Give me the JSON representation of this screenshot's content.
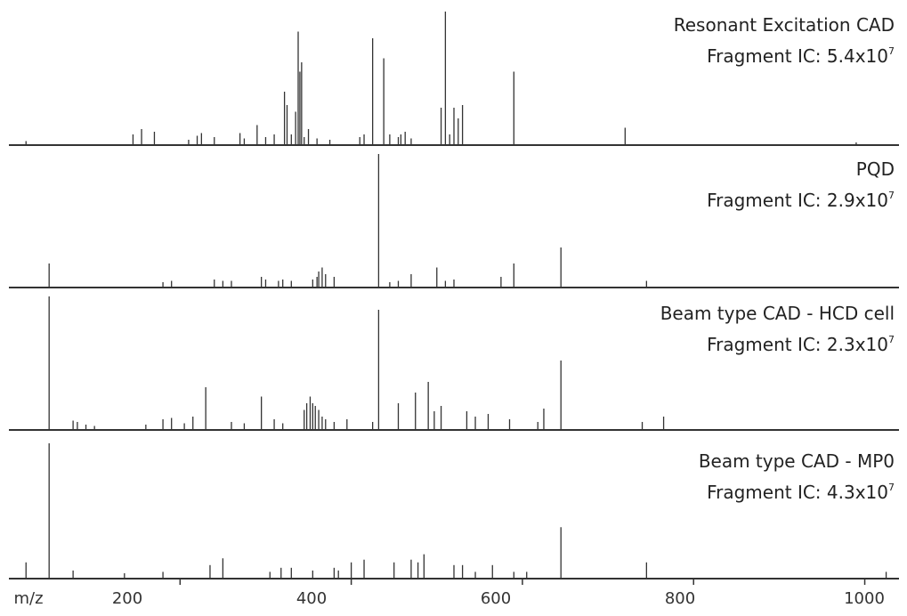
{
  "chart_data": {
    "type": "bar",
    "description_of_axes": "",
    "xlabel": "m/z",
    "xlim": [
      0,
      1040
    ],
    "x_ticks": [
      200,
      400,
      600,
      800,
      1000
    ],
    "panels": [
      {
        "title": "Resonant Excitation CAD",
        "ic_label": "Fragment IC: 5.4x10",
        "ic_exponent": "7",
        "peaks_mz": [
          20,
          145,
          155,
          170,
          210,
          220,
          225,
          240,
          270,
          275,
          290,
          300,
          310,
          322,
          325,
          330,
          335,
          338,
          340,
          342,
          345,
          350,
          360,
          375,
          410,
          415,
          425,
          438,
          445,
          455,
          458,
          463,
          470,
          505,
          510,
          515,
          520,
          525,
          530,
          590,
          720,
          990
        ],
        "peaks_rel": [
          0.03,
          0.08,
          0.12,
          0.1,
          0.04,
          0.07,
          0.09,
          0.06,
          0.09,
          0.05,
          0.15,
          0.06,
          0.08,
          0.4,
          0.3,
          0.08,
          0.25,
          0.85,
          0.55,
          0.62,
          0.06,
          0.12,
          0.05,
          0.04,
          0.06,
          0.08,
          0.8,
          0.65,
          0.08,
          0.06,
          0.08,
          0.1,
          0.05,
          0.28,
          1.0,
          0.08,
          0.28,
          0.2,
          0.3,
          0.55,
          0.13,
          0.02
        ]
      },
      {
        "title": "PQD",
        "ic_label": "Fragment IC: 2.9x10",
        "ic_exponent": "7",
        "peaks_mz": [
          47,
          180,
          190,
          240,
          250,
          260,
          295,
          300,
          315,
          320,
          330,
          355,
          360,
          362,
          366,
          370,
          380,
          432,
          445,
          455,
          470,
          500,
          510,
          520,
          575,
          590,
          645,
          745
        ],
        "peaks_rel": [
          0.18,
          0.04,
          0.05,
          0.06,
          0.05,
          0.05,
          0.08,
          0.06,
          0.05,
          0.06,
          0.05,
          0.06,
          0.08,
          0.12,
          0.15,
          0.1,
          0.08,
          1.0,
          0.04,
          0.05,
          0.1,
          0.15,
          0.05,
          0.06,
          0.08,
          0.18,
          0.3,
          0.05
        ]
      },
      {
        "title": "Beam type CAD - HCD cell",
        "ic_label": "Fragment IC: 2.3x10",
        "ic_exponent": "7",
        "peaks_mz": [
          47,
          75,
          80,
          90,
          100,
          160,
          180,
          190,
          205,
          215,
          230,
          260,
          275,
          295,
          310,
          320,
          345,
          348,
          352,
          355,
          358,
          362,
          366,
          370,
          380,
          395,
          425,
          432,
          455,
          475,
          490,
          497,
          505,
          535,
          545,
          560,
          585,
          618,
          625,
          645,
          740,
          765
        ],
        "peaks_rel": [
          1.0,
          0.07,
          0.06,
          0.04,
          0.03,
          0.04,
          0.08,
          0.09,
          0.05,
          0.1,
          0.32,
          0.06,
          0.05,
          0.25,
          0.08,
          0.05,
          0.15,
          0.2,
          0.25,
          0.2,
          0.18,
          0.15,
          0.1,
          0.08,
          0.06,
          0.08,
          0.06,
          0.9,
          0.2,
          0.28,
          0.36,
          0.14,
          0.18,
          0.14,
          0.1,
          0.12,
          0.08,
          0.06,
          0.16,
          0.52,
          0.06,
          0.1
        ]
      },
      {
        "title": "Beam type CAD - MP0",
        "ic_label": "Fragment IC: 4.3x10",
        "ic_exponent": "7",
        "peaks_mz": [
          20,
          47,
          75,
          135,
          180,
          235,
          250,
          305,
          318,
          330,
          355,
          380,
          385,
          400,
          415,
          450,
          470,
          478,
          485,
          520,
          530,
          545,
          565,
          590,
          605,
          645,
          745,
          1025
        ],
        "peaks_rel": [
          0.12,
          1.0,
          0.06,
          0.04,
          0.05,
          0.1,
          0.15,
          0.05,
          0.08,
          0.08,
          0.06,
          0.08,
          0.06,
          0.12,
          0.14,
          0.12,
          0.14,
          0.12,
          0.18,
          0.1,
          0.1,
          0.05,
          0.1,
          0.05,
          0.05,
          0.38,
          0.12,
          0.05
        ]
      }
    ]
  }
}
